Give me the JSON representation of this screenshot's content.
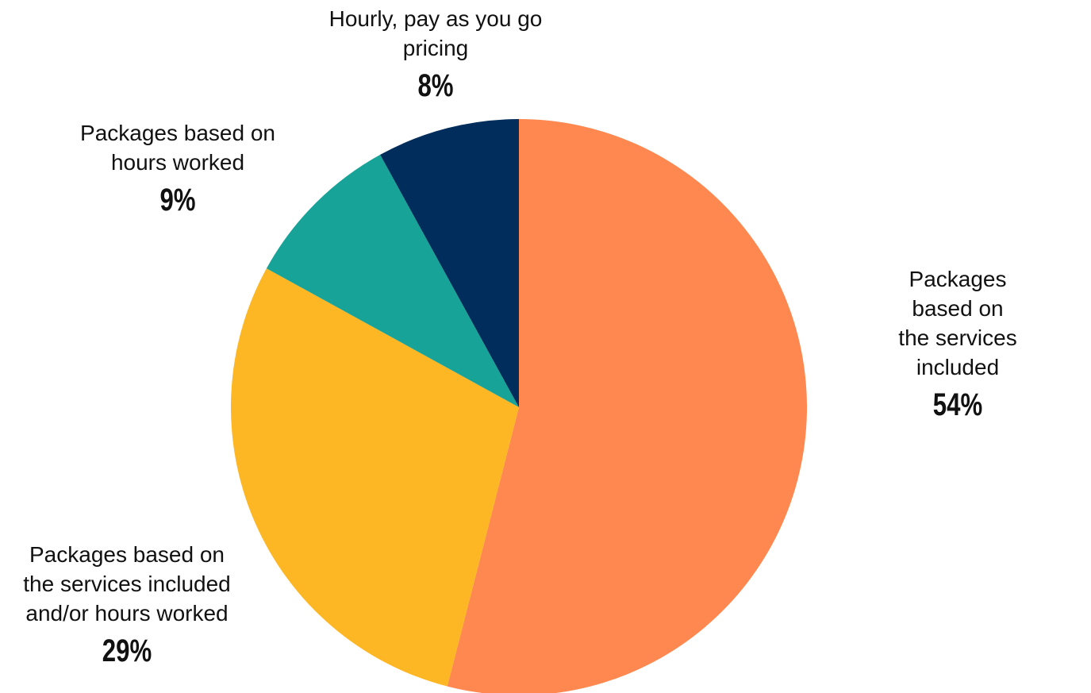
{
  "chart_data": {
    "type": "pie",
    "title": "",
    "slices": [
      {
        "label": "Packages based on\nthe services included",
        "value": 54,
        "value_label": "54%",
        "color": "#FF8750"
      },
      {
        "label": "Packages based on\nthe services included\nand/or hours worked",
        "value": 29,
        "value_label": "29%",
        "color": "#FDB624"
      },
      {
        "label": "Packages based on\nhours worked",
        "value": 9,
        "value_label": "9%",
        "color": "#18A398"
      },
      {
        "label": "Hourly, pay as you go\npricing",
        "value": 8,
        "value_label": "8%",
        "color": "#002D5C"
      }
    ],
    "start_angle_deg": 0,
    "direction": "clockwise",
    "legend": "none",
    "labels": "outside"
  }
}
